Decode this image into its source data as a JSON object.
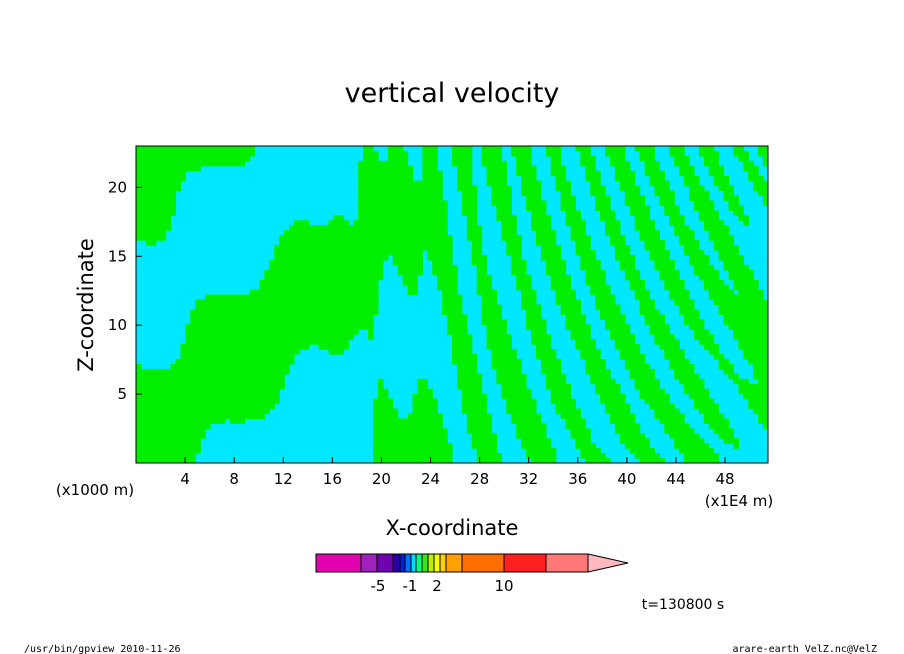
{
  "chart_data": {
    "type": "heatmap",
    "title": "vertical velocity",
    "xlabel": "X-coordinate",
    "ylabel": "Z-coordinate",
    "x_unit_left": "(x1000 m)",
    "x_unit_right": "(x1E4 m)",
    "xlim": [
      0,
      51.5
    ],
    "ylim": [
      0,
      23
    ],
    "x_ticks": [
      4,
      8,
      12,
      16,
      20,
      24,
      28,
      32,
      36,
      40,
      44,
      48
    ],
    "y_ticks": [
      5,
      10,
      15,
      20
    ],
    "field_colors": {
      "negative": "#00e8ff",
      "positive": "#00ee00",
      "contour": "#000000"
    },
    "colorbar": {
      "colors": [
        "#e000b0",
        "#a020c0",
        "#7000b0",
        "#2a00a0",
        "#0020e0",
        "#0070ff",
        "#00d8ff",
        "#00ff80",
        "#40e020",
        "#b8f000",
        "#ffff00",
        "#ffd000",
        "#ffa000",
        "#ff7000",
        "#ff2020",
        "#ff7878",
        "#ffb8c0"
      ],
      "labels": [
        "-5",
        "-1",
        "2",
        "10"
      ]
    },
    "time_label": "t=130800 s"
  },
  "footer": {
    "left": "/usr/bin/gpview   2010-11-26",
    "right": "arare-earth_VelZ.nc@VelZ"
  }
}
